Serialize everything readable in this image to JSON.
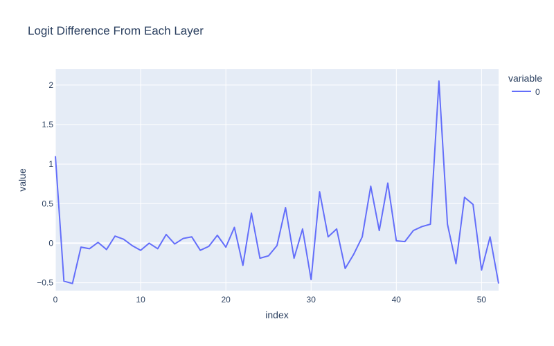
{
  "chart_data": {
    "type": "line",
    "title": "Logit Difference From Each Layer",
    "xlabel": "index",
    "ylabel": "value",
    "xlim": [
      0,
      52
    ],
    "ylim": [
      -0.6,
      2.2
    ],
    "xticks": [
      0,
      10,
      20,
      30,
      40,
      50
    ],
    "yticks": [
      -0.5,
      0,
      0.5,
      1,
      1.5,
      2
    ],
    "ytick_labels": [
      "−0.5",
      "0",
      "0.5",
      "1",
      "1.5",
      "2"
    ],
    "grid": true,
    "legend": {
      "title": "variable",
      "position": "top-right"
    },
    "series": [
      {
        "name": "0",
        "color": "#636efa",
        "x": [
          0,
          1,
          2,
          3,
          4,
          5,
          6,
          7,
          8,
          9,
          10,
          11,
          12,
          13,
          14,
          15,
          16,
          17,
          18,
          19,
          20,
          21,
          22,
          23,
          24,
          25,
          26,
          27,
          28,
          29,
          30,
          31,
          32,
          33,
          34,
          35,
          36,
          37,
          38,
          39,
          40,
          41,
          42,
          43,
          44,
          45,
          46,
          47,
          48,
          49,
          50,
          51,
          52
        ],
        "values": [
          1.1,
          -0.48,
          -0.51,
          -0.05,
          -0.07,
          0.01,
          -0.08,
          0.09,
          0.05,
          -0.03,
          -0.09,
          0.0,
          -0.07,
          0.11,
          -0.01,
          0.06,
          0.08,
          -0.09,
          -0.04,
          0.1,
          -0.05,
          0.2,
          -0.28,
          0.38,
          -0.19,
          -0.16,
          -0.03,
          0.45,
          -0.19,
          0.18,
          -0.46,
          0.65,
          0.08,
          0.18,
          -0.32,
          -0.14,
          0.08,
          0.72,
          0.16,
          0.76,
          0.03,
          0.02,
          0.16,
          0.21,
          0.24,
          2.05,
          0.24,
          -0.26,
          0.58,
          0.49,
          -0.34,
          0.08,
          -0.51
        ]
      }
    ]
  }
}
